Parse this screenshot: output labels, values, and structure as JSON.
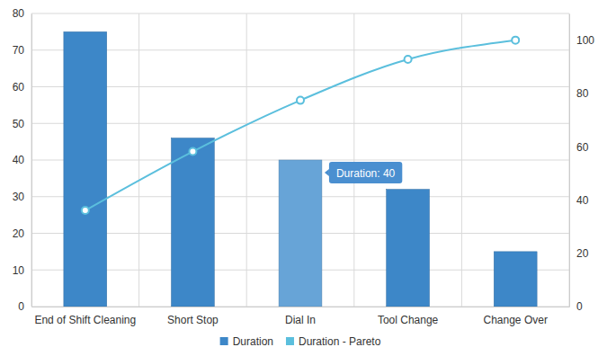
{
  "chart_data": {
    "type": "bar",
    "categories": [
      "End of Shift Cleaning",
      "Short Stop",
      "Dial In",
      "Tool Change",
      "Change Over"
    ],
    "series": [
      {
        "name": "Duration",
        "type": "bar",
        "color": "#3d87c8",
        "colors": [
          "#3d87c8",
          "#3d87c8",
          "#67a4d7",
          "#3d87c8",
          "#3d87c8"
        ],
        "values": [
          75,
          46,
          40,
          32,
          15
        ]
      },
      {
        "name": "Duration - Pareto",
        "type": "line",
        "axis": "y2",
        "color": "#5bbfdd",
        "marker": "circle",
        "line_style": "smooth",
        "values": [
          36.1,
          58.2,
          77.4,
          92.8,
          100
        ]
      }
    ],
    "ylim": [
      0,
      80
    ],
    "yticks": [
      0,
      10,
      20,
      30,
      40,
      50,
      60,
      70,
      80
    ],
    "y2lim": [
      0,
      110
    ],
    "y2ticks": [
      0,
      20,
      40,
      60,
      80,
      100
    ],
    "grid": true,
    "legend": "bottom",
    "annotations": [
      {
        "text": "Duration: 40",
        "category": "Dial In"
      }
    ]
  }
}
